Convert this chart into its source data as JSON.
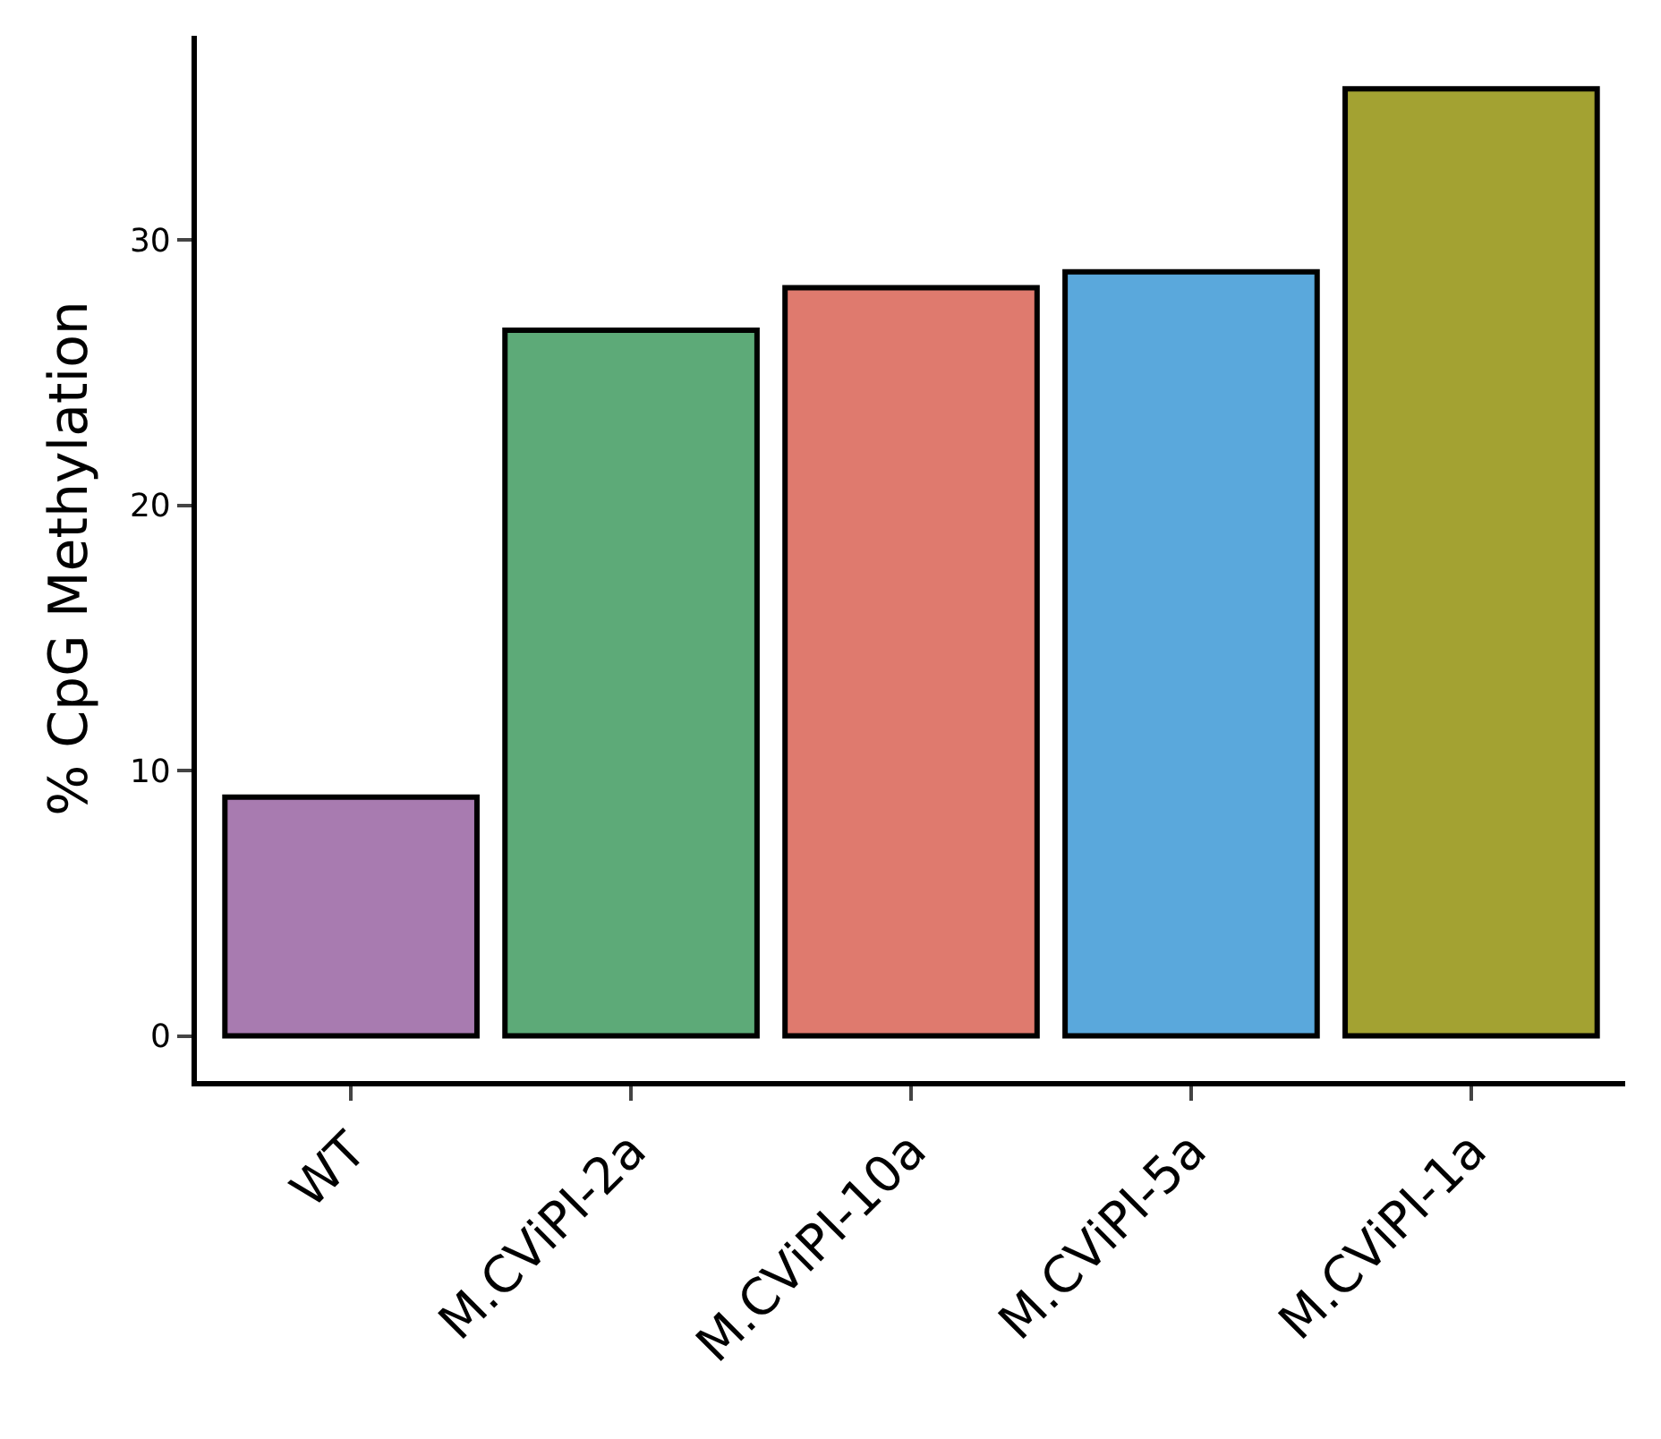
{
  "chart_data": {
    "type": "bar",
    "ylabel": "% CpG Methylation",
    "categories": [
      "WT",
      "M.CViPI-2a",
      "M.CViPI-10a",
      "M.CViPI-5a",
      "M.CViPI-1a"
    ],
    "values": [
      9.0,
      26.6,
      28.2,
      28.8,
      35.7
    ],
    "colors": [
      "#a87bb0",
      "#5daa78",
      "#df7a6e",
      "#5aa8dc",
      "#a3a232"
    ],
    "ylim": [
      -1.7,
      37.7
    ],
    "yticks": [
      0,
      10,
      20,
      30
    ]
  }
}
